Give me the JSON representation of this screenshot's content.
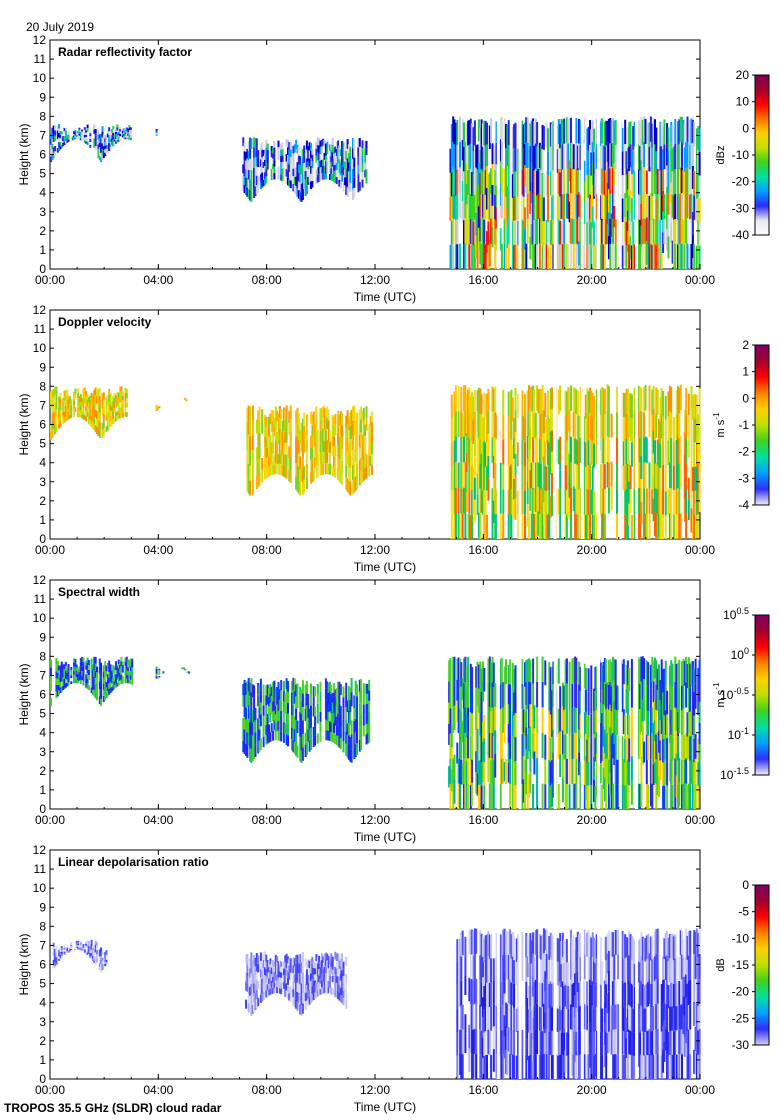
{
  "date": "20 July 2019",
  "footer": "TROPOS 35.5 GHz (SLDR) cloud radar",
  "chart_data": [
    {
      "type": "heatmap",
      "title": "Radar reflectivity factor",
      "xlabel": "Time (UTC)",
      "ylabel": "Height (km)",
      "x_ticks": [
        "00:00",
        "04:00",
        "08:00",
        "12:00",
        "16:00",
        "20:00",
        "00:00"
      ],
      "y_ticks": [
        0,
        1,
        2,
        3,
        4,
        5,
        6,
        7,
        8,
        9,
        10,
        11,
        12
      ],
      "xlim": [
        0,
        24
      ],
      "ylim": [
        0,
        12
      ],
      "colorbar": {
        "unit": "dBz",
        "ticks": [
          "20",
          "10",
          "0",
          "-10",
          "-20",
          "-30",
          "-40"
        ],
        "range": [
          -40,
          20
        ]
      },
      "cloud_segments": [
        {
          "t_start": 0.0,
          "t_end": 3.0,
          "base_km": 5.6,
          "top_km": 7.6
        },
        {
          "t_start": 3.9,
          "t_end": 5.1,
          "base_km": 6.5,
          "top_km": 7.4
        },
        {
          "t_start": 7.1,
          "t_end": 11.8,
          "base_km": 3.5,
          "top_km": 6.9
        },
        {
          "t_start": 14.7,
          "t_end": 24.0,
          "base_km": 0.0,
          "top_km": 8.0
        }
      ]
    },
    {
      "type": "heatmap",
      "title": "Doppler velocity",
      "xlabel": "Time (UTC)",
      "ylabel": "Height (km)",
      "x_ticks": [
        "00:00",
        "04:00",
        "08:00",
        "12:00",
        "16:00",
        "20:00",
        "00:00"
      ],
      "y_ticks": [
        0,
        1,
        2,
        3,
        4,
        5,
        6,
        7,
        8,
        9,
        10,
        11,
        12
      ],
      "xlim": [
        0,
        24
      ],
      "ylim": [
        0,
        12
      ],
      "colorbar": {
        "unit": "m s",
        "unit_sup": "-1",
        "ticks": [
          "2",
          "1",
          "0",
          "-1",
          "-2",
          "-3",
          "-4"
        ],
        "range": [
          -4,
          2
        ]
      },
      "cloud_segments": [
        {
          "t_start": 0.0,
          "t_end": 2.9,
          "base_km": 5.2,
          "top_km": 8.0
        },
        {
          "t_start": 3.9,
          "t_end": 5.0,
          "base_km": 6.3,
          "top_km": 7.4
        },
        {
          "t_start": 7.2,
          "t_end": 11.9,
          "base_km": 2.2,
          "top_km": 7.0
        },
        {
          "t_start": 14.8,
          "t_end": 24.0,
          "base_km": 0.0,
          "top_km": 8.1
        }
      ]
    },
    {
      "type": "heatmap",
      "title": "Spectral width",
      "xlabel": "Time (UTC)",
      "ylabel": "Height (km)",
      "x_ticks": [
        "00:00",
        "04:00",
        "08:00",
        "12:00",
        "16:00",
        "20:00",
        "00:00"
      ],
      "y_ticks": [
        0,
        1,
        2,
        3,
        4,
        5,
        6,
        7,
        8,
        9,
        10,
        11,
        12
      ],
      "xlim": [
        0,
        24
      ],
      "ylim": [
        0,
        12
      ],
      "colorbar": {
        "unit": "m s",
        "unit_sup": "-1",
        "ticks": [
          "10^0.5",
          "10^0",
          "10^-0.5",
          "10^-1",
          "10^-1.5"
        ],
        "range": [
          -1.5,
          0.5
        ]
      },
      "cloud_segments": [
        {
          "t_start": 0.0,
          "t_end": 3.0,
          "base_km": 5.4,
          "top_km": 8.0
        },
        {
          "t_start": 3.9,
          "t_end": 5.1,
          "base_km": 6.3,
          "top_km": 7.5
        },
        {
          "t_start": 7.1,
          "t_end": 11.8,
          "base_km": 2.4,
          "top_km": 6.9
        },
        {
          "t_start": 14.7,
          "t_end": 24.0,
          "base_km": 0.0,
          "top_km": 8.0
        }
      ]
    },
    {
      "type": "heatmap",
      "title": "Linear depolarisation ratio",
      "xlabel": "Time (UTC)",
      "ylabel": "Height (km)",
      "x_ticks": [
        "00:00",
        "04:00",
        "08:00",
        "12:00",
        "16:00",
        "20:00",
        "00:00"
      ],
      "y_ticks": [
        0,
        1,
        2,
        3,
        4,
        5,
        6,
        7,
        8,
        9,
        10,
        11,
        12
      ],
      "xlim": [
        0,
        24
      ],
      "ylim": [
        0,
        12
      ],
      "colorbar": {
        "unit": "dB",
        "ticks": [
          "0",
          "-5",
          "-10",
          "-15",
          "-20",
          "-25",
          "-30"
        ],
        "range": [
          -30,
          0
        ]
      },
      "cloud_segments": [
        {
          "t_start": 0.1,
          "t_end": 2.1,
          "base_km": 5.6,
          "top_km": 7.3
        },
        {
          "t_start": 7.2,
          "t_end": 11.0,
          "base_km": 3.3,
          "top_km": 6.7
        },
        {
          "t_start": 15.0,
          "t_end": 24.0,
          "base_km": 0.0,
          "top_km": 7.9
        }
      ]
    }
  ]
}
